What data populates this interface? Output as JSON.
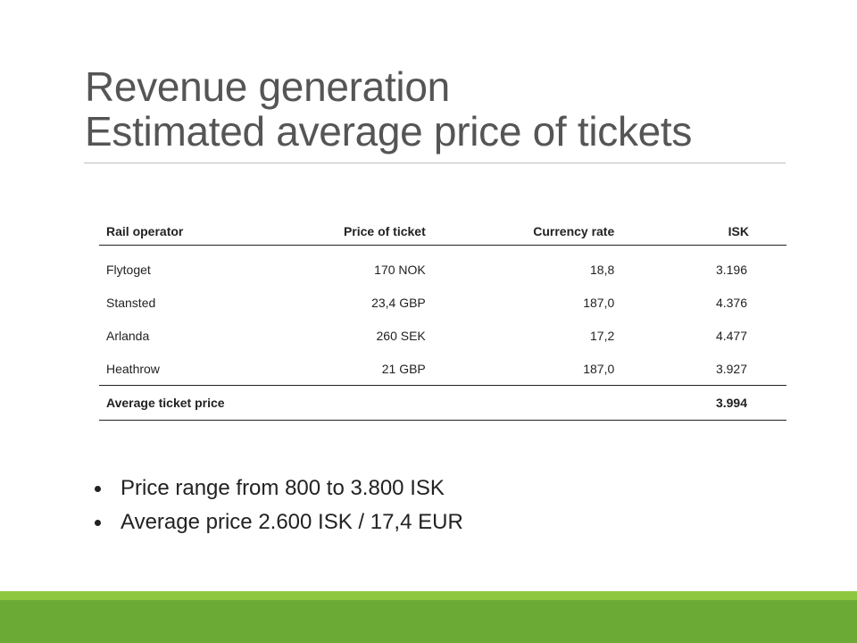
{
  "slide": {
    "title_line1": "Revenue generation",
    "title_line2": "Estimated average price of tickets"
  },
  "table": {
    "headers": [
      "Rail operator",
      "Price of ticket",
      "Currency rate",
      "ISK"
    ],
    "rows": [
      [
        "Flytoget",
        "170 NOK",
        "18,8",
        "3.196"
      ],
      [
        "Stansted",
        "23,4 GBP",
        "187,0",
        "4.376"
      ],
      [
        "Arlanda",
        "260 SEK",
        "17,2",
        "4.477"
      ],
      [
        "Heathrow",
        "21 GBP",
        "187,0",
        "3.927"
      ]
    ],
    "total": {
      "label": "Average ticket price",
      "value": "3.994"
    }
  },
  "bullets": [
    "Price range from 800 to 3.800 ISK",
    "Average price 2.600 ISK / 17,4 EUR"
  ],
  "colors": {
    "footer_light": "#8dc63f",
    "footer_dark": "#6aaa35",
    "title": "#555555"
  }
}
